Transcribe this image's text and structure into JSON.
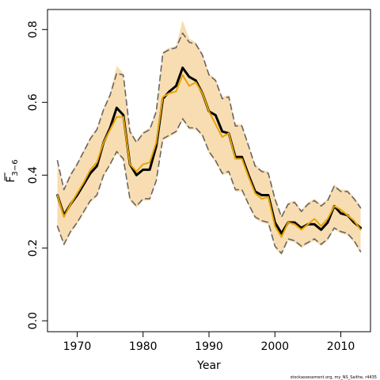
{
  "chart_data": {
    "type": "line",
    "xlabel": "Year",
    "ylabel": {
      "main": "F",
      "sub": "3−6"
    },
    "xlim": [
      1965.5,
      2014.5
    ],
    "ylim": [
      -0.03,
      0.855
    ],
    "xticks": [
      1970,
      1980,
      1990,
      2000,
      2010
    ],
    "yticks": [
      0.0,
      0.2,
      0.4,
      0.6,
      0.8
    ],
    "ytick_labels": [
      "0.0",
      "0.2",
      "0.4",
      "0.6",
      "0.8"
    ],
    "grid": false,
    "x": [
      1967,
      1968,
      1969,
      1970,
      1971,
      1972,
      1973,
      1974,
      1975,
      1976,
      1977,
      1978,
      1979,
      1980,
      1981,
      1982,
      1983,
      1984,
      1985,
      1986,
      1987,
      1988,
      1989,
      1990,
      1991,
      1992,
      1993,
      1994,
      1995,
      1996,
      1997,
      1998,
      1999,
      2000,
      2001,
      2002,
      2003,
      2004,
      2005,
      2006,
      2007,
      2008,
      2009,
      2010,
      2011,
      2012,
      2013
    ],
    "series": [
      {
        "color": "#000000",
        "style": "solid",
        "values": [
          0.345,
          0.29,
          0.32,
          0.345,
          0.375,
          0.405,
          0.425,
          0.49,
          0.53,
          0.585,
          0.565,
          0.43,
          0.4,
          0.415,
          0.415,
          0.48,
          0.61,
          0.63,
          0.645,
          0.695,
          0.67,
          0.66,
          0.625,
          0.575,
          0.565,
          0.52,
          0.515,
          0.45,
          0.45,
          0.4,
          0.355,
          0.345,
          0.345,
          0.27,
          0.24,
          0.27,
          0.27,
          0.255,
          0.265,
          0.265,
          0.25,
          0.27,
          0.315,
          0.295,
          0.29,
          0.27,
          0.255
        ]
      },
      {
        "color": "#e6a500",
        "style": "solid",
        "values": [
          0.345,
          0.285,
          0.32,
          0.35,
          0.38,
          0.415,
          0.435,
          0.49,
          0.525,
          0.56,
          0.56,
          0.43,
          0.41,
          0.43,
          0.435,
          0.49,
          0.615,
          0.625,
          0.63,
          0.675,
          0.645,
          0.655,
          0.625,
          0.575,
          0.54,
          0.505,
          0.515,
          0.445,
          0.445,
          0.395,
          0.35,
          0.335,
          0.34,
          0.26,
          0.23,
          0.27,
          0.265,
          0.25,
          0.265,
          0.28,
          0.26,
          0.28,
          0.315,
          0.305,
          0.29,
          0.275,
          0.25
        ]
      },
      {
        "color": "#666666",
        "style": "dashed",
        "values": [
          0.44,
          0.36,
          0.4,
          0.43,
          0.465,
          0.5,
          0.525,
          0.58,
          0.62,
          0.68,
          0.675,
          0.52,
          0.49,
          0.515,
          0.525,
          0.575,
          0.735,
          0.745,
          0.75,
          0.79,
          0.765,
          0.76,
          0.73,
          0.675,
          0.66,
          0.61,
          0.615,
          0.535,
          0.535,
          0.48,
          0.425,
          0.41,
          0.405,
          0.335,
          0.285,
          0.32,
          0.325,
          0.3,
          0.32,
          0.33,
          0.315,
          0.33,
          0.37,
          0.355,
          0.355,
          0.335,
          0.31
        ]
      },
      {
        "color": "#666666",
        "style": "dashed",
        "values": [
          0.26,
          0.21,
          0.245,
          0.27,
          0.3,
          0.33,
          0.345,
          0.4,
          0.43,
          0.465,
          0.445,
          0.335,
          0.315,
          0.335,
          0.335,
          0.385,
          0.5,
          0.51,
          0.52,
          0.555,
          0.53,
          0.53,
          0.51,
          0.465,
          0.44,
          0.405,
          0.41,
          0.36,
          0.36,
          0.32,
          0.285,
          0.275,
          0.27,
          0.205,
          0.185,
          0.225,
          0.22,
          0.205,
          0.215,
          0.225,
          0.21,
          0.225,
          0.255,
          0.245,
          0.24,
          0.22,
          0.19
        ]
      }
    ],
    "band": {
      "color": "#f8ddb2",
      "upper": [
        0.44,
        0.365,
        0.405,
        0.435,
        0.47,
        0.505,
        0.53,
        0.585,
        0.625,
        0.7,
        0.68,
        0.525,
        0.495,
        0.52,
        0.53,
        0.58,
        0.74,
        0.75,
        0.755,
        0.825,
        0.775,
        0.765,
        0.735,
        0.68,
        0.665,
        0.615,
        0.62,
        0.54,
        0.54,
        0.485,
        0.43,
        0.415,
        0.41,
        0.34,
        0.29,
        0.325,
        0.33,
        0.305,
        0.325,
        0.335,
        0.32,
        0.335,
        0.375,
        0.36,
        0.36,
        0.34,
        0.315
      ],
      "lower": [
        0.255,
        0.205,
        0.24,
        0.265,
        0.295,
        0.325,
        0.34,
        0.395,
        0.425,
        0.46,
        0.44,
        0.33,
        0.31,
        0.33,
        0.33,
        0.38,
        0.495,
        0.505,
        0.515,
        0.55,
        0.525,
        0.525,
        0.505,
        0.46,
        0.435,
        0.4,
        0.405,
        0.355,
        0.355,
        0.315,
        0.28,
        0.27,
        0.265,
        0.2,
        0.18,
        0.22,
        0.215,
        0.2,
        0.21,
        0.22,
        0.205,
        0.22,
        0.25,
        0.24,
        0.235,
        0.215,
        0.185
      ]
    },
    "credit": "stockassessment.org, my_NS_Saithe, r4435"
  }
}
